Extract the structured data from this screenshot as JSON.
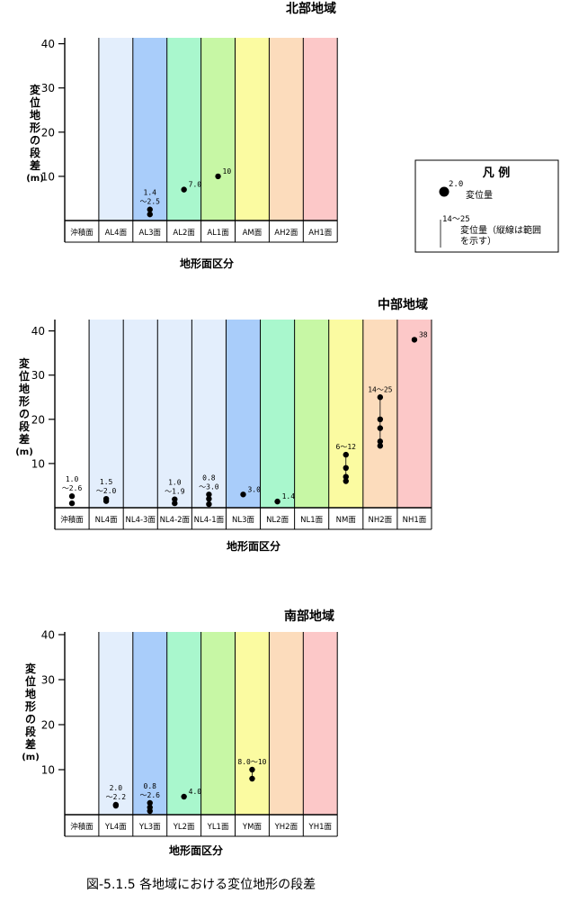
{
  "caption": "図-5.1.5 各地域における変位地形の段差",
  "legend": {
    "title": "凡 例",
    "point_value": "2.0",
    "point_label": "変位量",
    "range_value": "14～25",
    "range_label_1": "変位量（縦線は範囲",
    "range_label_2": "を示す）"
  },
  "chart_data": [
    {
      "type": "scatter",
      "title": "北部地域",
      "xlabel": "地形面区分",
      "ylabel": "変位地形の段差（m）",
      "ylim": [
        0,
        40
      ],
      "yticks": [
        "10",
        "20",
        "30",
        "40"
      ],
      "categories": [
        "沖積面",
        "AL4面",
        "AL3面",
        "AL2面",
        "AL1面",
        "AM面",
        "AH2面",
        "AH1面"
      ],
      "colors": [
        "#ffffff",
        "#e3eefc",
        "#a9cdfa",
        "#a9f7cd",
        "#c7f7a5",
        "#fbfba1",
        "#fcdcbc",
        "#fcc8c8"
      ],
      "points": [
        {
          "cat": 2,
          "values": [
            1.4,
            2.5
          ],
          "label_lines": [
            "1.4",
            "～2.5"
          ]
        },
        {
          "cat": 3,
          "values": [
            7.0
          ],
          "label_lines": [
            "7.0"
          ]
        },
        {
          "cat": 4,
          "values": [
            10
          ],
          "label_lines": [
            "10"
          ]
        }
      ]
    },
    {
      "type": "scatter",
      "title": "中部地域",
      "xlabel": "地形面区分",
      "ylabel": "変位地形の段差（m）",
      "ylim": [
        0,
        40
      ],
      "yticks": [
        "10",
        "20",
        "30",
        "40"
      ],
      "categories": [
        "沖積面",
        "NL4面",
        "NL4-3面",
        "NL4-2面",
        "NL4-1面",
        "NL3面",
        "NL2面",
        "NL1面",
        "NM面",
        "NH2面",
        "NH1面"
      ],
      "colors": [
        "#ffffff",
        "#e3eefc",
        "#e3eefc",
        "#e3eefc",
        "#e3eefc",
        "#a9cdfa",
        "#a9f7cd",
        "#c7f7a5",
        "#fbfba1",
        "#fcdcbc",
        "#fcc8c8"
      ],
      "points": [
        {
          "cat": 0,
          "values": [
            1.0,
            2.6
          ],
          "label_lines": [
            "1.0",
            "～2.6"
          ]
        },
        {
          "cat": 1,
          "values": [
            1.5,
            2.0
          ],
          "label_lines": [
            "1.5",
            "～2.0"
          ]
        },
        {
          "cat": 3,
          "values": [
            1.0,
            1.9
          ],
          "label_lines": [
            "1.0",
            "～1.9"
          ]
        },
        {
          "cat": 4,
          "values": [
            0.8,
            2.0,
            3.0
          ],
          "label_lines": [
            "0.8",
            "～3.0"
          ]
        },
        {
          "cat": 5,
          "values": [
            3.0
          ],
          "label_lines": [
            "3.0"
          ]
        },
        {
          "cat": 6,
          "values": [
            1.4
          ],
          "label_lines": [
            "1.4"
          ]
        },
        {
          "cat": 8,
          "values": [
            6,
            7,
            9,
            12
          ],
          "label_lines": [
            "6～12"
          ],
          "range": [
            6,
            12
          ]
        },
        {
          "cat": 9,
          "values": [
            14,
            15,
            18,
            20,
            25
          ],
          "label_lines": [
            "14～25"
          ],
          "range": [
            14,
            25
          ]
        },
        {
          "cat": 10,
          "values": [
            38
          ],
          "label_lines": [
            "38"
          ]
        }
      ]
    },
    {
      "type": "scatter",
      "title": "南部地域",
      "xlabel": "地形面区分",
      "ylabel": "変位地形の段差（m）",
      "ylim": [
        0,
        40
      ],
      "yticks": [
        "10",
        "20",
        "30",
        "40"
      ],
      "categories": [
        "沖積面",
        "YL4面",
        "YL3面",
        "YL2面",
        "YL1面",
        "YM面",
        "YH2面",
        "YH1面"
      ],
      "colors": [
        "#ffffff",
        "#e3eefc",
        "#a9cdfa",
        "#a9f7cd",
        "#c7f7a5",
        "#fbfba1",
        "#fcdcbc",
        "#fcc8c8"
      ],
      "points": [
        {
          "cat": 1,
          "values": [
            2.0,
            2.2
          ],
          "label_lines": [
            "2.0",
            "～2.2"
          ]
        },
        {
          "cat": 2,
          "values": [
            0.8,
            1.6,
            2.6
          ],
          "label_lines": [
            "0.8",
            "～2.6"
          ]
        },
        {
          "cat": 3,
          "values": [
            4.0
          ],
          "label_lines": [
            "4.0"
          ]
        },
        {
          "cat": 5,
          "values": [
            8.0,
            10
          ],
          "label_lines": [
            "8.0～10"
          ],
          "range": [
            8,
            10
          ]
        }
      ]
    }
  ]
}
